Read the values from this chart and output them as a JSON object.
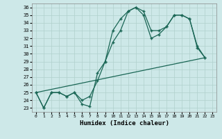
{
  "title": "",
  "xlabel": "Humidex (Indice chaleur)",
  "bg_color": "#cde8e8",
  "grid_color": "#b0d0cc",
  "line_color": "#1a6655",
  "xlim": [
    -0.5,
    23.5
  ],
  "ylim": [
    22.5,
    36.5
  ],
  "xticks": [
    0,
    1,
    2,
    3,
    4,
    5,
    6,
    7,
    8,
    9,
    10,
    11,
    12,
    13,
    14,
    15,
    16,
    17,
    18,
    19,
    20,
    21,
    22,
    23
  ],
  "yticks": [
    23,
    24,
    25,
    26,
    27,
    28,
    29,
    30,
    31,
    32,
    33,
    34,
    35,
    36
  ],
  "line1_x": [
    0,
    1,
    2,
    3,
    4,
    5,
    6,
    7,
    8,
    9,
    10,
    11,
    12,
    13,
    14,
    15,
    16,
    17,
    18,
    19,
    20,
    21,
    22
  ],
  "line1_y": [
    25,
    23,
    25,
    25,
    24.5,
    25,
    23.5,
    23.2,
    27.5,
    29.0,
    31.5,
    33.0,
    35.5,
    36.0,
    35.0,
    32.0,
    32.5,
    33.5,
    35.0,
    35.0,
    34.5,
    30.8,
    29.5
  ],
  "line2_x": [
    0,
    1,
    2,
    3,
    4,
    5,
    6,
    7,
    8,
    9,
    10,
    11,
    12,
    13,
    14,
    15,
    16,
    17,
    18,
    19,
    20,
    21,
    22
  ],
  "line2_y": [
    25,
    23,
    25,
    25,
    24.5,
    25,
    24.0,
    24.5,
    26.5,
    29.0,
    33.0,
    34.5,
    35.5,
    36.0,
    35.5,
    33.0,
    33.0,
    33.5,
    35.0,
    35.0,
    34.5,
    31.0,
    29.5
  ],
  "line3_x": [
    0,
    22
  ],
  "line3_y": [
    25,
    29.5
  ]
}
